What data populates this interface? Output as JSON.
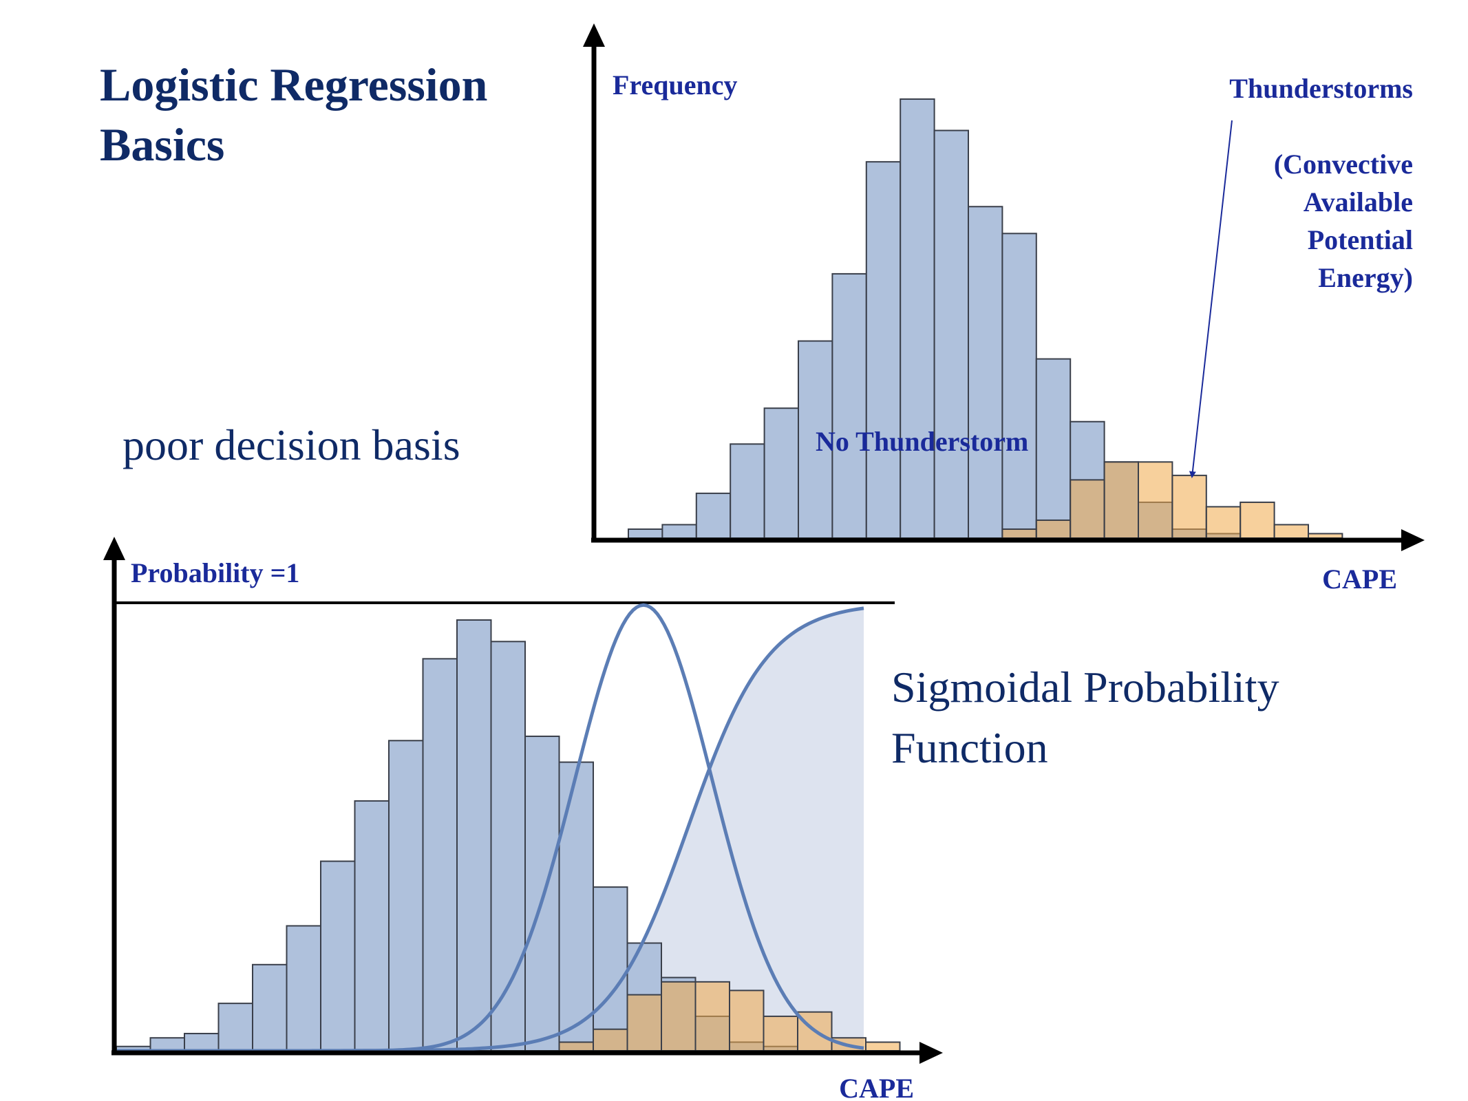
{
  "title": [
    "Logistic Regression",
    "Basics"
  ],
  "annotations": {
    "poor_decision": "poor decision basis",
    "sigmoid_caption": [
      "Sigmoidal Probability",
      "Function"
    ]
  },
  "colors": {
    "no_storm_fill": "#afc1dc",
    "storm_fill": "#f0a94a",
    "overlap_fill": "#9a9a98",
    "curve": "#5b7db5",
    "shade": "#dde3ef",
    "label_text": "#1a2a9a",
    "title_text": "#0f2a66",
    "axis": "#000000"
  },
  "chart_data": [
    {
      "type": "bar",
      "ylabel": "Frequency",
      "xlabel": "CAPE",
      "annotations": [
        "No Thunderstorm",
        "Thunderstorms",
        "(Convective",
        "Available",
        "Potential",
        "Energy)"
      ],
      "series": [
        {
          "name": "No Thunderstorm",
          "values": [
            2,
            3,
            10,
            21,
            29,
            44,
            59,
            84,
            98,
            91,
            74,
            68,
            40,
            26,
            17,
            8,
            2,
            1
          ]
        },
        {
          "name": "Thunderstorms",
          "values": [
            0,
            0,
            0,
            0,
            0,
            0,
            0,
            0,
            0,
            0,
            0,
            2,
            4,
            13,
            17,
            17,
            14,
            7,
            8,
            3,
            1
          ]
        }
      ],
      "ylim": [
        0,
        100
      ]
    },
    {
      "type": "bar",
      "ylabel": "Probability =1",
      "xlabel": "CAPE",
      "series": [
        {
          "name": "No Thunderstorm",
          "values": [
            1,
            3,
            4,
            11,
            20,
            29,
            44,
            58,
            72,
            91,
            100,
            95,
            73,
            67,
            38,
            25,
            17,
            8,
            2,
            1
          ]
        },
        {
          "name": "Thunderstorms",
          "values": [
            0,
            0,
            0,
            0,
            0,
            0,
            0,
            0,
            0,
            0,
            0,
            0,
            0,
            2,
            5,
            13,
            16,
            16,
            14,
            8,
            9,
            3,
            2
          ]
        }
      ],
      "ylim": [
        0,
        100
      ]
    }
  ]
}
